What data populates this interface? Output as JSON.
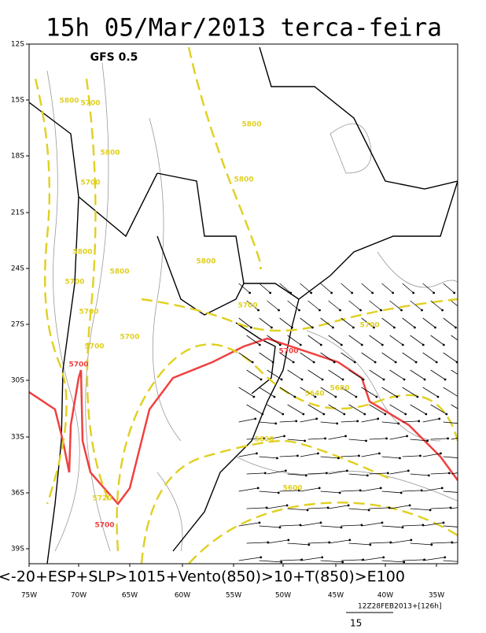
{
  "title": "15h 05/Mar/2013 terca-feira",
  "model": "GFS 0.5",
  "lat_labels": [
    "12S",
    "15S",
    "18S",
    "21S",
    "24S",
    "27S",
    "30S",
    "33S",
    "36S",
    "39S"
  ],
  "lon_labels": [
    "75W",
    "70W",
    "65W",
    "60W",
    "55W",
    "50W",
    "45W",
    "40W",
    "35W"
  ],
  "caption": "<-20+ESP+SLP>1015+Vento(850)>10+T(850)>E100",
  "run": "12Z28FEB2013+[126h]",
  "vector_scale": "15",
  "contours": [
    {
      "color": "#e0d020",
      "labels": [
        "5800",
        "5700",
        "5800",
        "5800",
        "5800",
        "5700",
        "5800",
        "5800",
        "5800",
        "5700",
        "5700",
        "5700",
        "5700",
        "5700",
        "5700",
        "5640",
        "5680",
        "5600",
        "5600",
        "5720"
      ]
    },
    {
      "color": "#f04040",
      "labels": [
        "5700",
        "5700",
        "5700"
      ]
    }
  ]
}
